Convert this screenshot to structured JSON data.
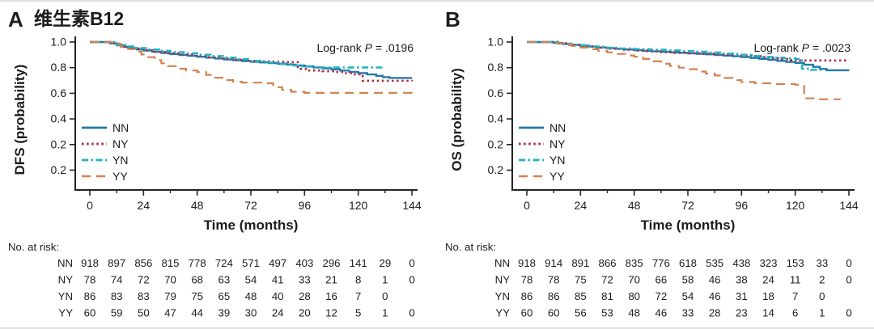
{
  "figure": {
    "divider_color": "#e2e2e2",
    "axis_color": "#242424",
    "text_color": "#1c1c1c"
  },
  "chart_data": [
    {
      "type": "line",
      "subtype": "kaplan-meier-step",
      "panel_label": "A",
      "title": "维生素B12",
      "title_color": "#f5320a",
      "xlabel": "Time (months)",
      "ylabel": "DFS (probability)",
      "xlim": [
        0,
        144
      ],
      "x_ticks": [
        0,
        24,
        48,
        72,
        96,
        120,
        144
      ],
      "x_minor_ticks": [
        12,
        36,
        60,
        84,
        108,
        132
      ],
      "y_tick_labels": [
        "1.0",
        "0.8",
        "0.6",
        "0.4",
        "0.2",
        "0.2"
      ],
      "grid": false,
      "legend_position": "lower-left",
      "annotation": {
        "prefix": "Log-rank ",
        "italic": "P",
        "suffix": " = .0196"
      },
      "series": [
        {
          "name": "NN",
          "style": "solid",
          "color": "#2579a9",
          "points": [
            [
              0,
              1
            ],
            [
              9,
              0.99
            ],
            [
              12,
              0.975
            ],
            [
              15,
              0.962
            ],
            [
              18,
              0.952
            ],
            [
              21,
              0.942
            ],
            [
              24,
              0.933
            ],
            [
              28,
              0.924
            ],
            [
              32,
              0.915
            ],
            [
              36,
              0.906
            ],
            [
              40,
              0.899
            ],
            [
              44,
              0.892
            ],
            [
              48,
              0.885
            ],
            [
              52,
              0.878
            ],
            [
              56,
              0.871
            ],
            [
              60,
              0.864
            ],
            [
              64,
              0.858
            ],
            [
              68,
              0.852
            ],
            [
              72,
              0.846
            ],
            [
              76,
              0.841
            ],
            [
              80,
              0.836
            ],
            [
              84,
              0.831
            ],
            [
              88,
              0.824
            ],
            [
              92,
              0.817
            ],
            [
              96,
              0.81
            ],
            [
              100,
              0.802
            ],
            [
              104,
              0.795
            ],
            [
              108,
              0.787
            ],
            [
              112,
              0.777
            ],
            [
              116,
              0.767
            ],
            [
              120,
              0.757
            ],
            [
              124,
              0.747
            ],
            [
              128,
              0.736
            ],
            [
              131,
              0.726
            ],
            [
              134,
              0.72
            ],
            [
              144,
              0.72
            ]
          ]
        },
        {
          "name": "NY",
          "style": "dotted",
          "color": "#b02c42",
          "points": [
            [
              0,
              1
            ],
            [
              11,
              0.987
            ],
            [
              14,
              0.962
            ],
            [
              19,
              0.949
            ],
            [
              24,
              0.936
            ],
            [
              29,
              0.923
            ],
            [
              34,
              0.912
            ],
            [
              40,
              0.902
            ],
            [
              46,
              0.893
            ],
            [
              52,
              0.882
            ],
            [
              58,
              0.872
            ],
            [
              64,
              0.862
            ],
            [
              70,
              0.853
            ],
            [
              76,
              0.848
            ],
            [
              82,
              0.845
            ],
            [
              88,
              0.843
            ],
            [
              93,
              0.79
            ],
            [
              98,
              0.778
            ],
            [
              104,
              0.772
            ],
            [
              110,
              0.766
            ],
            [
              114,
              0.757
            ],
            [
              118,
              0.748
            ],
            [
              122,
              0.698
            ],
            [
              144,
              0.695
            ]
          ]
        },
        {
          "name": "YN",
          "style": "dashdot",
          "color": "#1ab3c4",
          "points": [
            [
              0,
              1
            ],
            [
              12,
              0.977
            ],
            [
              16,
              0.965
            ],
            [
              21,
              0.953
            ],
            [
              26,
              0.942
            ],
            [
              31,
              0.932
            ],
            [
              36,
              0.922
            ],
            [
              42,
              0.912
            ],
            [
              48,
              0.901
            ],
            [
              54,
              0.891
            ],
            [
              60,
              0.879
            ],
            [
              66,
              0.866
            ],
            [
              72,
              0.852
            ],
            [
              78,
              0.839
            ],
            [
              84,
              0.828
            ],
            [
              90,
              0.817
            ],
            [
              95,
              0.808
            ],
            [
              100,
              0.801
            ],
            [
              132,
              0.8
            ]
          ]
        },
        {
          "name": "YY",
          "style": "dashed",
          "color": "#d2824e",
          "points": [
            [
              0,
              1
            ],
            [
              11,
              0.985
            ],
            [
              14,
              0.965
            ],
            [
              17,
              0.945
            ],
            [
              20,
              0.924
            ],
            [
              23,
              0.903
            ],
            [
              26,
              0.882
            ],
            [
              29,
              0.858
            ],
            [
              32,
              0.834
            ],
            [
              35,
              0.812
            ],
            [
              39,
              0.792
            ],
            [
              43,
              0.778
            ],
            [
              48,
              0.765
            ],
            [
              52,
              0.744
            ],
            [
              56,
              0.722
            ],
            [
              60,
              0.703
            ],
            [
              64,
              0.69
            ],
            [
              68,
              0.683
            ],
            [
              78,
              0.678
            ],
            [
              82,
              0.648
            ],
            [
              86,
              0.627
            ],
            [
              90,
              0.612
            ],
            [
              96,
              0.603
            ],
            [
              144,
              0.6
            ]
          ]
        }
      ],
      "risk_table": {
        "header": "No. at risk:",
        "time_step": 12,
        "rows": [
          {
            "name": "NN",
            "values": [
              918,
              897,
              856,
              815,
              778,
              724,
              571,
              497,
              403,
              296,
              141,
              29,
              0
            ]
          },
          {
            "name": "NY",
            "values": [
              78,
              74,
              72,
              70,
              68,
              63,
              54,
              41,
              33,
              21,
              8,
              1,
              0
            ]
          },
          {
            "name": "YN",
            "values": [
              86,
              83,
              83,
              79,
              75,
              65,
              48,
              40,
              28,
              16,
              7,
              0
            ]
          },
          {
            "name": "YY",
            "values": [
              60,
              59,
              50,
              47,
              44,
              39,
              30,
              24,
              20,
              12,
              5,
              1,
              0
            ]
          }
        ]
      }
    },
    {
      "type": "line",
      "subtype": "kaplan-meier-step",
      "panel_label": "B",
      "title": "",
      "title_color": "#f5320a",
      "xlabel": "Time (months)",
      "ylabel": "OS (probability)",
      "xlim": [
        0,
        144
      ],
      "x_ticks": [
        0,
        24,
        48,
        72,
        96,
        120,
        144
      ],
      "x_minor_ticks": [
        12,
        36,
        60,
        84,
        108,
        132
      ],
      "y_tick_labels": [
        "1.0",
        "0.8",
        "0.6",
        "0.4",
        "0.2",
        "0.2"
      ],
      "grid": false,
      "legend_position": "lower-left",
      "annotation": {
        "prefix": "Log-rank ",
        "italic": "P",
        "suffix": " = .0023"
      },
      "series": [
        {
          "name": "NN",
          "style": "solid",
          "color": "#2579a9",
          "points": [
            [
              0,
              1
            ],
            [
              12,
              0.993
            ],
            [
              16,
              0.985
            ],
            [
              20,
              0.978
            ],
            [
              24,
              0.971
            ],
            [
              28,
              0.964
            ],
            [
              32,
              0.958
            ],
            [
              36,
              0.952
            ],
            [
              40,
              0.947
            ],
            [
              44,
              0.942
            ],
            [
              48,
              0.937
            ],
            [
              52,
              0.932
            ],
            [
              56,
              0.928
            ],
            [
              60,
              0.924
            ],
            [
              64,
              0.92
            ],
            [
              68,
              0.916
            ],
            [
              72,
              0.912
            ],
            [
              76,
              0.908
            ],
            [
              80,
              0.904
            ],
            [
              84,
              0.899
            ],
            [
              88,
              0.894
            ],
            [
              92,
              0.889
            ],
            [
              96,
              0.883
            ],
            [
              100,
              0.876
            ],
            [
              104,
              0.869
            ],
            [
              108,
              0.861
            ],
            [
              112,
              0.853
            ],
            [
              116,
              0.845
            ],
            [
              120,
              0.837
            ],
            [
              124,
              0.823
            ],
            [
              128,
              0.806
            ],
            [
              131,
              0.79
            ],
            [
              134,
              0.78
            ],
            [
              144,
              0.778
            ]
          ]
        },
        {
          "name": "NY",
          "style": "dotted",
          "color": "#b02c42",
          "points": [
            [
              0,
              1
            ],
            [
              14,
              0.99
            ],
            [
              19,
              0.978
            ],
            [
              24,
              0.966
            ],
            [
              30,
              0.956
            ],
            [
              36,
              0.948
            ],
            [
              42,
              0.94
            ],
            [
              48,
              0.933
            ],
            [
              54,
              0.927
            ],
            [
              60,
              0.921
            ],
            [
              66,
              0.916
            ],
            [
              72,
              0.912
            ],
            [
              78,
              0.908
            ],
            [
              84,
              0.905
            ],
            [
              90,
              0.901
            ],
            [
              96,
              0.896
            ],
            [
              102,
              0.89
            ],
            [
              106,
              0.882
            ],
            [
              110,
              0.874
            ],
            [
              114,
              0.867
            ],
            [
              118,
              0.86
            ],
            [
              122,
              0.856
            ],
            [
              144,
              0.855
            ]
          ]
        },
        {
          "name": "YN",
          "style": "dashdot",
          "color": "#1ab3c4",
          "points": [
            [
              0,
              1
            ],
            [
              14,
              0.988
            ],
            [
              20,
              0.976
            ],
            [
              27,
              0.965
            ],
            [
              34,
              0.956
            ],
            [
              41,
              0.95
            ],
            [
              48,
              0.945
            ],
            [
              55,
              0.94
            ],
            [
              62,
              0.935
            ],
            [
              69,
              0.93
            ],
            [
              76,
              0.924
            ],
            [
              82,
              0.918
            ],
            [
              88,
              0.91
            ],
            [
              94,
              0.901
            ],
            [
              100,
              0.891
            ],
            [
              105,
              0.884
            ],
            [
              110,
              0.878
            ],
            [
              115,
              0.873
            ],
            [
              120,
              0.868
            ],
            [
              123,
              0.792
            ],
            [
              127,
              0.783
            ],
            [
              132,
              0.78
            ]
          ]
        },
        {
          "name": "YY",
          "style": "dashed",
          "color": "#d2824e",
          "points": [
            [
              0,
              1
            ],
            [
              12,
              0.991
            ],
            [
              16,
              0.981
            ],
            [
              20,
              0.97
            ],
            [
              24,
              0.957
            ],
            [
              28,
              0.944
            ],
            [
              32,
              0.931
            ],
            [
              36,
              0.919
            ],
            [
              40,
              0.907
            ],
            [
              44,
              0.895
            ],
            [
              48,
              0.886
            ],
            [
              52,
              0.868
            ],
            [
              56,
              0.849
            ],
            [
              60,
              0.831
            ],
            [
              64,
              0.813
            ],
            [
              68,
              0.8
            ],
            [
              72,
              0.788
            ],
            [
              76,
              0.77
            ],
            [
              80,
              0.754
            ],
            [
              84,
              0.739
            ],
            [
              88,
              0.72
            ],
            [
              92,
              0.702
            ],
            [
              96,
              0.688
            ],
            [
              102,
              0.678
            ],
            [
              110,
              0.672
            ],
            [
              120,
              0.667
            ],
            [
              124,
              0.56
            ],
            [
              130,
              0.553
            ],
            [
              140,
              0.55
            ]
          ]
        }
      ],
      "risk_table": {
        "header": "No. at risk:",
        "time_step": 12,
        "rows": [
          {
            "name": "NN",
            "values": [
              918,
              914,
              891,
              866,
              835,
              776,
              618,
              535,
              438,
              323,
              153,
              33,
              0
            ]
          },
          {
            "name": "NY",
            "values": [
              78,
              78,
              75,
              72,
              70,
              66,
              58,
              46,
              38,
              24,
              11,
              2,
              0
            ]
          },
          {
            "name": "YN",
            "values": [
              86,
              86,
              85,
              81,
              80,
              72,
              54,
              46,
              31,
              18,
              7,
              0
            ]
          },
          {
            "name": "YY",
            "values": [
              60,
              60,
              56,
              53,
              48,
              46,
              33,
              28,
              23,
              14,
              6,
              1,
              0
            ]
          }
        ]
      }
    }
  ]
}
